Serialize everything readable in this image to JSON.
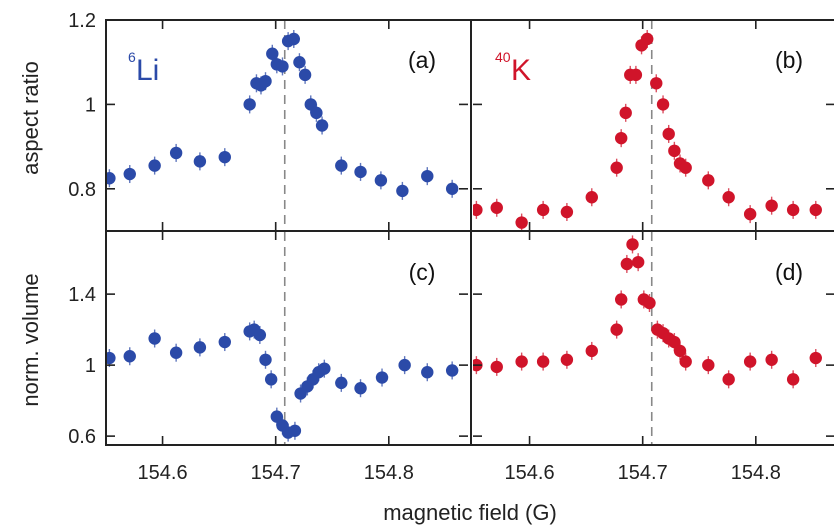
{
  "chart_data": {
    "type": "scatter",
    "xlabel": "magnetic field (G)",
    "shared_xlim": [
      154.55,
      154.87
    ],
    "x_ticks": [
      "154.6",
      "154.7",
      "154.8"
    ],
    "colors": {
      "li": "#2b4aa8",
      "k": "#d0142a",
      "resonance_line": "#888888",
      "frame": "#222222"
    },
    "rows": [
      {
        "ylabel": "aspect ratio",
        "ylim": [
          0.7,
          1.2
        ],
        "y_ticks": [
          {
            "value": 0.8,
            "label": "0.8"
          },
          {
            "value": 1.0,
            "label": "1"
          },
          {
            "value": 1.2,
            "label": "1.2"
          }
        ]
      },
      {
        "ylabel": "norm. volume",
        "ylim": [
          0.55,
          1.75
        ],
        "y_ticks": [
          {
            "value": 0.6,
            "label": "0.6"
          },
          {
            "value": 1.0,
            "label": "1"
          },
          {
            "value": 1.4,
            "label": "1.4"
          }
        ]
      }
    ],
    "panels": [
      {
        "label": "(a)",
        "species_mass": "6",
        "species": "Li",
        "color_key": "li",
        "row": 0,
        "col": 0,
        "resonance": 154.708,
        "points": [
          [
            154.553,
            0.825
          ],
          [
            154.571,
            0.835
          ],
          [
            154.593,
            0.855
          ],
          [
            154.612,
            0.885
          ],
          [
            154.633,
            0.865
          ],
          [
            154.655,
            0.875
          ],
          [
            154.677,
            1.0
          ],
          [
            154.683,
            1.05
          ],
          [
            154.687,
            1.045
          ],
          [
            154.691,
            1.055
          ],
          [
            154.697,
            1.12
          ],
          [
            154.701,
            1.095
          ],
          [
            154.706,
            1.09
          ],
          [
            154.711,
            1.15
          ],
          [
            154.716,
            1.155
          ],
          [
            154.721,
            1.1
          ],
          [
            154.726,
            1.07
          ],
          [
            154.731,
            1.0
          ],
          [
            154.736,
            0.98
          ],
          [
            154.741,
            0.95
          ],
          [
            154.758,
            0.855
          ],
          [
            154.775,
            0.84
          ],
          [
            154.793,
            0.82
          ],
          [
            154.812,
            0.795
          ],
          [
            154.834,
            0.83
          ],
          [
            154.856,
            0.8
          ]
        ]
      },
      {
        "label": "(b)",
        "species_mass": "40",
        "species": "K",
        "color_key": "k",
        "row": 0,
        "col": 1,
        "resonance": 154.708,
        "points": [
          [
            154.553,
            0.75
          ],
          [
            154.571,
            0.755
          ],
          [
            154.593,
            0.72
          ],
          [
            154.612,
            0.75
          ],
          [
            154.633,
            0.745
          ],
          [
            154.655,
            0.78
          ],
          [
            154.677,
            0.85
          ],
          [
            154.681,
            0.92
          ],
          [
            154.685,
            0.98
          ],
          [
            154.689,
            1.07
          ],
          [
            154.694,
            1.07
          ],
          [
            154.699,
            1.14
          ],
          [
            154.704,
            1.155
          ],
          [
            154.712,
            1.05
          ],
          [
            154.718,
            1.0
          ],
          [
            154.723,
            0.93
          ],
          [
            154.728,
            0.89
          ],
          [
            154.733,
            0.86
          ],
          [
            154.738,
            0.85
          ],
          [
            154.758,
            0.82
          ],
          [
            154.776,
            0.78
          ],
          [
            154.795,
            0.74
          ],
          [
            154.814,
            0.76
          ],
          [
            154.833,
            0.75
          ],
          [
            154.853,
            0.75
          ]
        ]
      },
      {
        "label": "(c)",
        "color_key": "li",
        "row": 1,
        "col": 0,
        "resonance": 154.708,
        "points": [
          [
            154.553,
            1.04
          ],
          [
            154.571,
            1.05
          ],
          [
            154.593,
            1.15
          ],
          [
            154.612,
            1.07
          ],
          [
            154.633,
            1.1
          ],
          [
            154.655,
            1.13
          ],
          [
            154.677,
            1.19
          ],
          [
            154.681,
            1.2
          ],
          [
            154.686,
            1.17
          ],
          [
            154.691,
            1.03
          ],
          [
            154.696,
            0.92
          ],
          [
            154.701,
            0.71
          ],
          [
            154.706,
            0.66
          ],
          [
            154.711,
            0.62
          ],
          [
            154.717,
            0.63
          ],
          [
            154.722,
            0.84
          ],
          [
            154.728,
            0.88
          ],
          [
            154.733,
            0.92
          ],
          [
            154.738,
            0.96
          ],
          [
            154.743,
            0.98
          ],
          [
            154.758,
            0.9
          ],
          [
            154.775,
            0.87
          ],
          [
            154.794,
            0.93
          ],
          [
            154.814,
            1.0
          ],
          [
            154.834,
            0.96
          ],
          [
            154.856,
            0.97
          ]
        ]
      },
      {
        "label": "(d)",
        "color_key": "k",
        "row": 1,
        "col": 1,
        "resonance": 154.708,
        "points": [
          [
            154.553,
            1.0
          ],
          [
            154.571,
            0.99
          ],
          [
            154.593,
            1.02
          ],
          [
            154.612,
            1.02
          ],
          [
            154.633,
            1.03
          ],
          [
            154.655,
            1.08
          ],
          [
            154.677,
            1.2
          ],
          [
            154.681,
            1.37
          ],
          [
            154.686,
            1.57
          ],
          [
            154.691,
            1.68
          ],
          [
            154.696,
            1.58
          ],
          [
            154.701,
            1.37
          ],
          [
            154.706,
            1.35
          ],
          [
            154.713,
            1.2
          ],
          [
            154.718,
            1.18
          ],
          [
            154.723,
            1.15
          ],
          [
            154.728,
            1.13
          ],
          [
            154.733,
            1.08
          ],
          [
            154.738,
            1.02
          ],
          [
            154.758,
            1.0
          ],
          [
            154.776,
            0.92
          ],
          [
            154.795,
            1.02
          ],
          [
            154.814,
            1.03
          ],
          [
            154.833,
            0.92
          ],
          [
            154.853,
            1.04
          ]
        ]
      }
    ]
  }
}
